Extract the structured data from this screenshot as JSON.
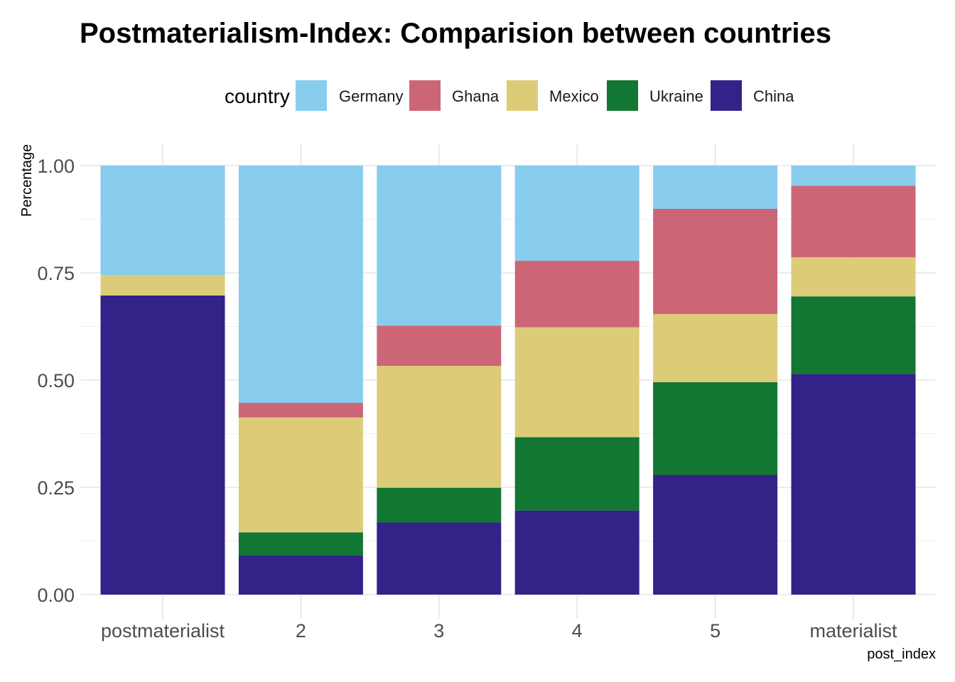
{
  "chart_data": {
    "type": "bar",
    "stacked": "percent",
    "title": "Postmaterialism-Index: Comparision between countries",
    "xlabel": "post_index",
    "ylabel": "Percentage",
    "ylim": [
      0,
      1
    ],
    "yticks": [
      "0.00",
      "0.25",
      "0.50",
      "0.75",
      "1.00"
    ],
    "categories": [
      "postmaterialist",
      "2",
      "3",
      "4",
      "5",
      "materialist"
    ],
    "legend": {
      "title": "country",
      "placement": "top"
    },
    "series": [
      {
        "name": "China",
        "color": "#332288",
        "values": [
          0.697,
          0.091,
          0.168,
          0.196,
          0.279,
          0.514
        ]
      },
      {
        "name": "Ukraine",
        "color": "#117733",
        "values": [
          0.0,
          0.054,
          0.081,
          0.171,
          0.216,
          0.181
        ]
      },
      {
        "name": "Mexico",
        "color": "#DDCC77",
        "values": [
          0.048,
          0.268,
          0.284,
          0.256,
          0.159,
          0.091
        ]
      },
      {
        "name": "Ghana",
        "color": "#CC6677",
        "values": [
          0.0,
          0.034,
          0.094,
          0.155,
          0.245,
          0.167
        ]
      },
      {
        "name": "Germany",
        "color": "#88CCEE",
        "values": [
          0.255,
          0.553,
          0.373,
          0.222,
          0.101,
          0.047
        ]
      }
    ],
    "legend_order": [
      "Germany",
      "Ghana",
      "Mexico",
      "Ukraine",
      "China"
    ],
    "grid": true
  }
}
